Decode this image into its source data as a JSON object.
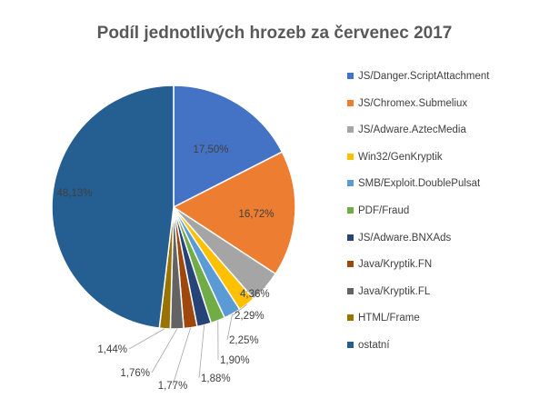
{
  "chart_data": {
    "type": "pie",
    "title": "Podíl jednotlivých hrozeb za červenec 2017",
    "categories": [
      "JS/Danger.ScriptAttachment",
      "JS/Chromex.Submeliux",
      "JS/Adware.AztecMedia",
      "Win32/GenKryptik",
      "SMB/Exploit.DoublePulsat",
      "PDF/Fraud",
      "JS/Adware.BNXAds",
      "Java/Kryptik.FN",
      "Java/Kryptik.FL",
      "HTML/Frame",
      "ostatní"
    ],
    "values": [
      17.5,
      16.72,
      4.36,
      2.29,
      2.25,
      1.9,
      1.88,
      1.77,
      1.76,
      1.44,
      48.13
    ],
    "value_labels": [
      "17,50%",
      "16,72%",
      "4,36%",
      "2,29%",
      "2,25%",
      "1,90%",
      "1,88%",
      "1,77%",
      "1,76%",
      "1,44%",
      "48,13%"
    ],
    "colors": [
      "#4472C4",
      "#ED7D31",
      "#A5A5A5",
      "#FFC000",
      "#5B9BD5",
      "#70AD47",
      "#264478",
      "#9E480E",
      "#636363",
      "#997300",
      "#255E91"
    ],
    "legend_position": "right",
    "start_angle": "top, clockwise"
  }
}
